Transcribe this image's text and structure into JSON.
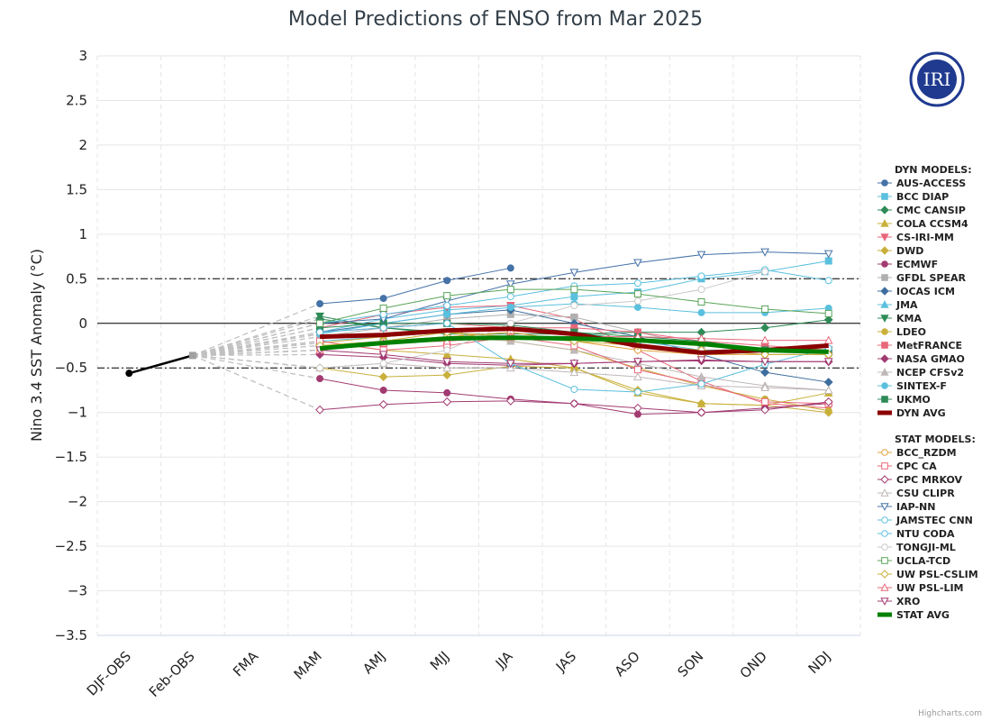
{
  "logo": {
    "text": "IRI",
    "color": "#1f3a8f"
  },
  "credit": "Highcharts.com",
  "chart_data": {
    "type": "line",
    "title": "Model Predictions of ENSO from Mar 2025",
    "xlabel": "",
    "ylabel": "Nino 3.4 SST Anomaly (°C)",
    "ylim": [
      -3.5,
      3
    ],
    "yticks": [
      3,
      2.5,
      2,
      1.5,
      1,
      0.5,
      0,
      -0.5,
      -1,
      -1.5,
      -2,
      -2.5,
      -3,
      -3.5
    ],
    "ytick_labels": [
      "3",
      "2.5",
      "2",
      "1.5",
      "1",
      "0.5",
      "0",
      "−0.5",
      "−1",
      "−1.5",
      "−2",
      "−2.5",
      "−3",
      "−3.5"
    ],
    "categories": [
      "DJF-OBS",
      "Feb-OBS",
      "FMA",
      "MAM",
      "AMJ",
      "MJJ",
      "JJA",
      "JAS",
      "ASO",
      "SON",
      "OND",
      "NDJ"
    ],
    "reference_lines": [
      0.5,
      0,
      -0.5
    ],
    "grid": true,
    "legend_position": "right",
    "observed": [
      -0.56,
      -0.36
    ],
    "legend_groups": [
      {
        "heading": "DYN MODELS:",
        "names": [
          "AUS-ACCESS",
          "BCC DIAP",
          "CMC CANSIP",
          "COLA CCSM4",
          "CS-IRI-MM",
          "DWD",
          "ECMWF",
          "GFDL SPEAR",
          "IOCAS ICM",
          "JMA",
          "KMA",
          "LDEO",
          "MetFRANCE",
          "NASA GMAO",
          "NCEP CFSv2",
          "SINTEX-F",
          "UKMO",
          "DYN AVG"
        ]
      },
      {
        "heading": "STAT MODELS:",
        "names": [
          "BCC_RZDM",
          "CPC CA",
          "CPC MRKOV",
          "CSU CLIPR",
          "IAP-NN",
          "JAMSTEC CNN",
          "NTU CODA",
          "TONGJI-ML",
          "UCLA-TCD",
          "UW PSL-CSLIM",
          "UW PSL-LIM",
          "XRO",
          "STAT AVG"
        ]
      }
    ],
    "series": [
      {
        "name": "AUS-ACCESS",
        "group": "dyn",
        "color": "#4572a7",
        "marker": "circle",
        "fill": true,
        "values": [
          null,
          null,
          null,
          0.22,
          0.28,
          0.48,
          0.62,
          null,
          null,
          null,
          null,
          null
        ]
      },
      {
        "name": "BCC DIAP",
        "group": "dyn",
        "color": "#5bc0de",
        "marker": "square",
        "fill": true,
        "values": [
          null,
          null,
          null,
          -0.1,
          0.05,
          0.15,
          0.2,
          0.3,
          0.35,
          0.5,
          0.58,
          0.7
        ]
      },
      {
        "name": "CMC CANSIP",
        "group": "dyn",
        "color": "#2e8b57",
        "marker": "diamond",
        "fill": true,
        "values": [
          null,
          null,
          null,
          0.05,
          -0.05,
          -0.12,
          -0.12,
          -0.12,
          -0.1,
          -0.1,
          -0.05,
          0.04
        ]
      },
      {
        "name": "COLA CCSM4",
        "group": "dyn",
        "color": "#c9b03b",
        "marker": "triangle",
        "fill": true,
        "values": [
          null,
          null,
          null,
          -0.2,
          -0.3,
          -0.35,
          -0.4,
          -0.5,
          -0.78,
          -0.9,
          -0.92,
          -0.78
        ]
      },
      {
        "name": "CS-IRI-MM",
        "group": "dyn",
        "color": "#e8677a",
        "marker": "triangle-down",
        "fill": true,
        "values": [
          null,
          null,
          null,
          -0.05,
          0.1,
          0.18,
          0.2,
          0.05,
          -0.3,
          -0.65,
          -0.9,
          -0.95
        ]
      },
      {
        "name": "DWD",
        "group": "dyn",
        "color": "#c9b03b",
        "marker": "diamond",
        "fill": true,
        "values": [
          null,
          null,
          null,
          -0.5,
          -0.6,
          -0.58,
          -0.48,
          -0.5,
          -0.75,
          -0.9,
          -0.92,
          -1.0
        ]
      },
      {
        "name": "ECMWF",
        "group": "dyn",
        "color": "#a23b72",
        "marker": "circle",
        "fill": true,
        "values": [
          null,
          null,
          null,
          -0.62,
          -0.75,
          -0.78,
          -0.85,
          -0.9,
          -1.02,
          -1.0,
          -0.95,
          -0.9
        ]
      },
      {
        "name": "GFDL SPEAR",
        "group": "dyn",
        "color": "#b0b0b0",
        "marker": "square",
        "fill": true,
        "values": [
          null,
          null,
          null,
          -0.15,
          -0.05,
          0.05,
          0.1,
          0.07,
          -0.1,
          -0.25,
          -0.3,
          -0.3
        ]
      },
      {
        "name": "IOCAS ICM",
        "group": "dyn",
        "color": "#3f6e9e",
        "marker": "diamond",
        "fill": true,
        "values": [
          null,
          null,
          null,
          -0.1,
          0.0,
          0.1,
          0.15,
          0.0,
          -0.15,
          -0.35,
          -0.55,
          -0.66
        ]
      },
      {
        "name": "JMA",
        "group": "dyn",
        "color": "#5bc0de",
        "marker": "triangle",
        "fill": true,
        "values": [
          null,
          null,
          null,
          -0.2,
          -0.15,
          -0.1,
          -0.05,
          -0.1,
          -0.2,
          -0.3,
          -0.3,
          -0.3
        ]
      },
      {
        "name": "KMA",
        "group": "dyn",
        "color": "#2e8b57",
        "marker": "triangle-down",
        "fill": true,
        "values": [
          null,
          null,
          null,
          0.08,
          -0.05,
          -0.1,
          -0.05,
          -0.1,
          -0.2,
          -0.25,
          -0.3,
          -0.3
        ]
      },
      {
        "name": "LDEO",
        "group": "dyn",
        "color": "#c9b03b",
        "marker": "circle",
        "fill": true,
        "values": [
          null,
          null,
          null,
          -0.22,
          -0.15,
          -0.1,
          -0.2,
          -0.3,
          -0.5,
          -0.7,
          -0.85,
          -0.98
        ]
      },
      {
        "name": "MetFRANCE",
        "group": "dyn",
        "color": "#e8677a",
        "marker": "square",
        "fill": true,
        "values": [
          null,
          null,
          null,
          -0.1,
          -0.05,
          0.0,
          -0.05,
          -0.05,
          -0.1,
          -0.2,
          -0.25,
          -0.3
        ]
      },
      {
        "name": "NASA GMAO",
        "group": "dyn",
        "color": "#a23b72",
        "marker": "diamond",
        "fill": true,
        "values": [
          null,
          null,
          null,
          -0.35,
          -0.38,
          -0.45,
          -0.47,
          -0.45,
          -0.43,
          -0.42,
          -0.43,
          -0.43
        ]
      },
      {
        "name": "NCEP CFSv2",
        "group": "dyn",
        "color": "#c0b8b8",
        "marker": "triangle",
        "fill": true,
        "values": [
          null,
          null,
          null,
          -0.3,
          -0.2,
          -0.15,
          -0.2,
          -0.3,
          -0.45,
          -0.6,
          -0.7,
          -0.75
        ]
      },
      {
        "name": "SINTEX-F",
        "group": "dyn",
        "color": "#5bc0de",
        "marker": "circle",
        "fill": true,
        "values": [
          null,
          null,
          null,
          -0.12,
          0.0,
          0.1,
          0.18,
          0.22,
          0.18,
          0.12,
          0.12,
          0.17
        ]
      },
      {
        "name": "UKMO",
        "group": "dyn",
        "color": "#2e8b57",
        "marker": "square",
        "fill": true,
        "values": [
          null,
          null,
          null,
          -0.05,
          0.0,
          0.0,
          -0.02,
          -0.1,
          -0.15,
          -0.2,
          -0.3,
          -0.33
        ]
      },
      {
        "name": "DYN AVG",
        "group": "dyn",
        "color": "#8b0000",
        "marker": "none",
        "avg": true,
        "values": [
          null,
          null,
          null,
          -0.15,
          -0.13,
          -0.08,
          -0.06,
          -0.12,
          -0.25,
          -0.33,
          -0.3,
          -0.25
        ]
      },
      {
        "name": "BCC_RZDM",
        "group": "stat",
        "color": "#e0a23b",
        "marker": "circle",
        "fill": false,
        "values": [
          null,
          null,
          null,
          -0.3,
          -0.2,
          -0.15,
          -0.1,
          -0.2,
          -0.3,
          -0.35,
          -0.35,
          -0.35
        ]
      },
      {
        "name": "CPC CA",
        "group": "stat",
        "color": "#e8677a",
        "marker": "square",
        "fill": false,
        "values": [
          null,
          null,
          null,
          -0.2,
          -0.3,
          -0.25,
          -0.15,
          -0.25,
          -0.52,
          -0.68,
          -0.88,
          -0.9
        ]
      },
      {
        "name": "CPC MRKOV",
        "group": "stat",
        "color": "#a23b72",
        "marker": "diamond",
        "fill": false,
        "values": [
          null,
          null,
          null,
          -0.97,
          -0.91,
          -0.88,
          -0.87,
          -0.9,
          -0.95,
          -1.0,
          -0.97,
          -0.88
        ]
      },
      {
        "name": "CSU CLIPR",
        "group": "stat",
        "color": "#c0b8b8",
        "marker": "triangle",
        "fill": false,
        "values": [
          null,
          null,
          null,
          -0.5,
          -0.45,
          -0.5,
          -0.5,
          -0.55,
          -0.6,
          -0.7,
          -0.72,
          -0.75
        ]
      },
      {
        "name": "IAP-NN",
        "group": "stat",
        "color": "#4572a7",
        "marker": "triangle-down",
        "fill": false,
        "values": [
          null,
          null,
          null,
          0.0,
          0.05,
          0.25,
          0.44,
          0.57,
          0.68,
          0.77,
          0.8,
          0.78
        ]
      },
      {
        "name": "JAMSTEC CNN",
        "group": "stat",
        "color": "#5bc0de",
        "marker": "circle",
        "fill": false,
        "values": [
          null,
          null,
          null,
          0.0,
          0.1,
          0.2,
          0.3,
          0.42,
          0.45,
          0.53,
          0.6,
          0.48
        ]
      },
      {
        "name": "NTU CODA",
        "group": "stat",
        "color": "#5bc0de",
        "marker": "circle",
        "fill": false,
        "values": [
          null,
          null,
          null,
          -0.1,
          -0.05,
          0.0,
          -0.45,
          -0.74,
          -0.77,
          -0.68,
          -0.46,
          -0.28
        ]
      },
      {
        "name": "TONGJI-ML",
        "group": "stat",
        "color": "#c8c8c8",
        "marker": "circle",
        "fill": false,
        "values": [
          null,
          null,
          null,
          -0.5,
          -0.45,
          -0.3,
          0.0,
          0.2,
          0.25,
          0.38,
          0.58,
          null
        ]
      },
      {
        "name": "UCLA-TCD",
        "group": "stat",
        "color": "#5aa55a",
        "marker": "square",
        "fill": false,
        "values": [
          null,
          null,
          null,
          0.0,
          0.17,
          0.31,
          0.38,
          0.38,
          0.33,
          0.24,
          0.16,
          0.11
        ]
      },
      {
        "name": "UW PSL-CSLIM",
        "group": "stat",
        "color": "#c9b03b",
        "marker": "diamond",
        "fill": false,
        "values": [
          null,
          null,
          null,
          -0.25,
          -0.2,
          -0.1,
          -0.15,
          -0.2,
          -0.25,
          -0.3,
          -0.35,
          -0.35
        ]
      },
      {
        "name": "UW PSL-LIM",
        "group": "stat",
        "color": "#e8677a",
        "marker": "triangle",
        "fill": false,
        "values": [
          null,
          null,
          null,
          -0.3,
          -0.22,
          -0.2,
          -0.15,
          -0.15,
          -0.15,
          -0.17,
          -0.19,
          -0.19
        ]
      },
      {
        "name": "XRO",
        "group": "stat",
        "color": "#a23b72",
        "marker": "triangle-down",
        "fill": false,
        "values": [
          null,
          null,
          null,
          -0.3,
          -0.35,
          -0.43,
          -0.45,
          -0.45,
          -0.43,
          -0.41,
          -0.43,
          -0.43
        ]
      },
      {
        "name": "STAT AVG",
        "group": "stat",
        "color": "#008000",
        "marker": "none",
        "avg": true,
        "values": [
          null,
          null,
          null,
          -0.28,
          -0.22,
          -0.17,
          -0.16,
          -0.17,
          -0.19,
          -0.23,
          -0.3,
          -0.32
        ]
      }
    ]
  }
}
